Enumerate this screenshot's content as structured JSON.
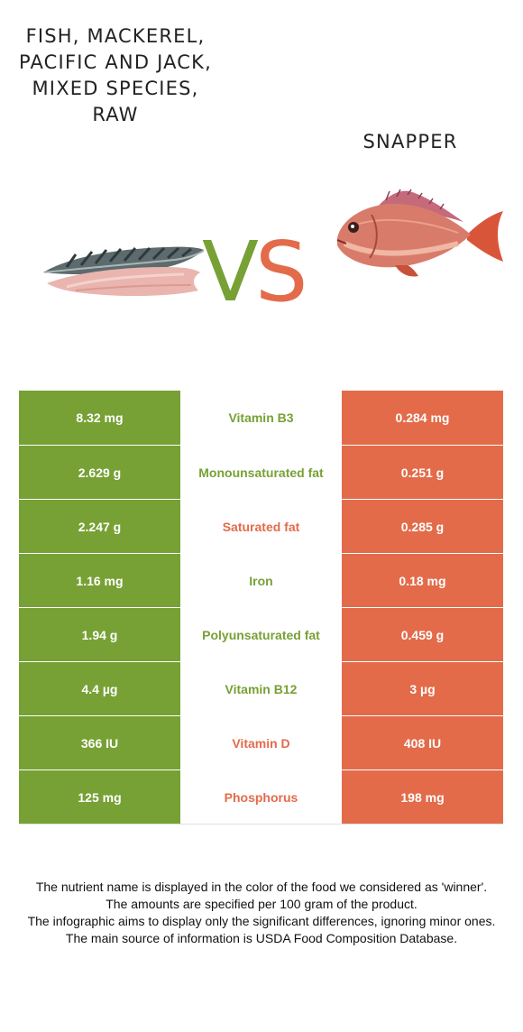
{
  "foods": {
    "left": {
      "name": "FISH, MACKEREL, PACIFIC AND JACK, MIXED SPECIES, RAW",
      "color": "#77a135"
    },
    "right": {
      "name": "SNAPPER",
      "color": "#e36b4a"
    }
  },
  "vs": {
    "v": "V",
    "s": "S"
  },
  "nutrients": [
    {
      "left": "8.32 mg",
      "name": "Vitamin B3",
      "right": "0.284 mg",
      "winner": "left"
    },
    {
      "left": "2.629 g",
      "name": "Monounsaturated fat",
      "right": "0.251 g",
      "winner": "left"
    },
    {
      "left": "2.247 g",
      "name": "Saturated fat",
      "right": "0.285 g",
      "winner": "right"
    },
    {
      "left": "1.16 mg",
      "name": "Iron",
      "right": "0.18 mg",
      "winner": "left"
    },
    {
      "left": "1.94 g",
      "name": "Polyunsaturated fat",
      "right": "0.459 g",
      "winner": "left"
    },
    {
      "left": "4.4 µg",
      "name": "Vitamin B12",
      "right": "3 µg",
      "winner": "left"
    },
    {
      "left": "366 IU",
      "name": "Vitamin D",
      "right": "408 IU",
      "winner": "right"
    },
    {
      "left": "125 mg",
      "name": "Phosphorus",
      "right": "198 mg",
      "winner": "right"
    }
  ],
  "footer": [
    "The nutrient name is displayed in the color of the food we considered as 'winner'.",
    "The amounts are specified per 100 gram of the product.",
    "The infographic aims to display only the significant differences, ignoring minor ones.",
    "The main source of information is USDA Food Composition Database."
  ]
}
